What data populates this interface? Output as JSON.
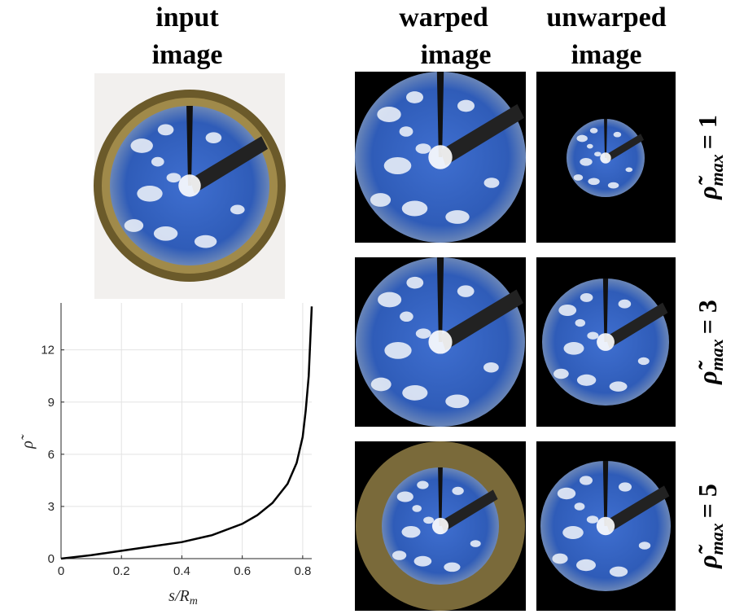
{
  "headers": [
    "input",
    "image",
    "warped",
    "image",
    "unwarped",
    "image"
  ],
  "rows": [
    {
      "symbol": "ρ̃",
      "sub": "max",
      "rest": "= 1"
    },
    {
      "symbol": "ρ̃",
      "sub": "max",
      "rest": "= 3"
    },
    {
      "symbol": "ρ̃",
      "sub": "max",
      "rest": "= 5"
    }
  ],
  "chart_data": {
    "type": "line",
    "x_label": {
      "main": "s/R",
      "sub": "m"
    },
    "y_label": "ρ̃",
    "x": [
      0,
      0.1,
      0.2,
      0.3,
      0.4,
      0.5,
      0.6,
      0.65,
      0.7,
      0.75,
      0.78,
      0.8,
      0.81,
      0.82,
      0.83
    ],
    "values": [
      0,
      0.2,
      0.45,
      0.7,
      0.95,
      1.35,
      2.0,
      2.5,
      3.2,
      4.3,
      5.5,
      7,
      8.5,
      10.5,
      14.5
    ],
    "color": "#000000",
    "xlim": [
      0,
      0.83
    ],
    "ylim": [
      0,
      14.7
    ],
    "xticks": [
      0,
      0.2,
      0.4,
      0.6,
      0.8
    ],
    "yticks": [
      0,
      3,
      6,
      9,
      12
    ],
    "grid": true
  }
}
